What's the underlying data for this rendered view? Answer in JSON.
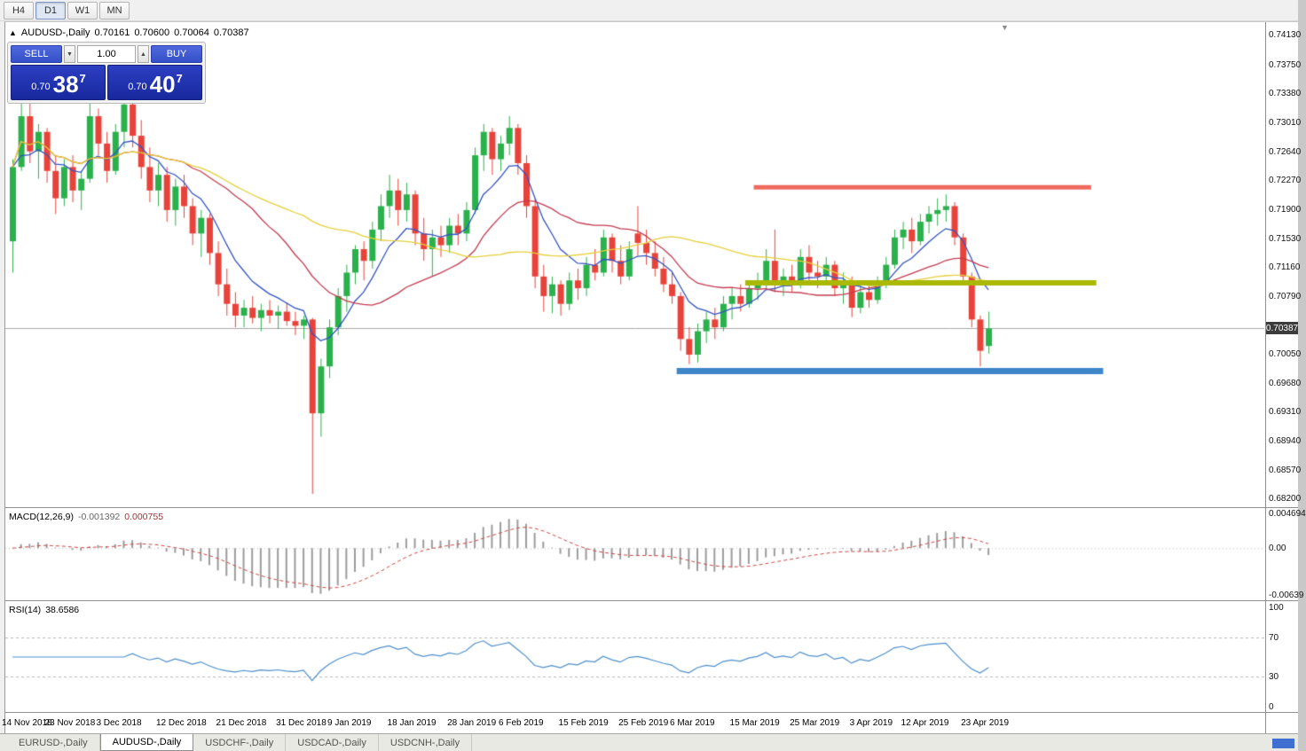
{
  "toolbar": {
    "timeframes": [
      {
        "label": "H4",
        "active": false
      },
      {
        "label": "D1",
        "active": true
      },
      {
        "label": "W1",
        "active": false
      },
      {
        "label": "MN",
        "active": false
      }
    ]
  },
  "icons": {
    "chart_shift_marker": "▼",
    "spinner_up": "▲",
    "spinner_down": "▼"
  },
  "chart_header": {
    "arrow": "▲",
    "symbol": "AUDUSD-,Daily",
    "open": "0.70161",
    "high": "0.70600",
    "low": "0.70064",
    "close": "0.70387"
  },
  "trade_panel": {
    "sell_label": "SELL",
    "buy_label": "BUY",
    "volume": "1.00",
    "sell_price": {
      "prefix": "0.70",
      "big": "38",
      "sup": "7"
    },
    "buy_price": {
      "prefix": "0.70",
      "big": "40",
      "sup": "7"
    }
  },
  "price_axis": {
    "labels": [
      "0.74130",
      "0.73750",
      "0.73380",
      "0.73010",
      "0.72640",
      "0.72270",
      "0.71900",
      "0.71530",
      "0.71160",
      "0.70790",
      "0.70050",
      "0.69680",
      "0.69310",
      "0.68940",
      "0.68570",
      "0.68200"
    ],
    "current_badge": "0.70387"
  },
  "indicator_macd": {
    "label": "MACD(12,26,9)",
    "value_main": "-0.001392",
    "value_signal": "0.000755",
    "axis_labels": [
      "0.004694",
      "0.00",
      "-0.00639"
    ]
  },
  "indicator_rsi": {
    "label": "RSI(14)",
    "value": "38.6586",
    "axis_labels": [
      "100",
      "70",
      "30",
      "0"
    ],
    "levels": [
      70,
      30
    ]
  },
  "date_axis": {
    "labels": [
      {
        "text": "14 Nov 2018",
        "bar": 0
      },
      {
        "text": "23 Nov 2018",
        "bar": 7
      },
      {
        "text": "3 Dec 2018",
        "bar": 13
      },
      {
        "text": "12 Dec 2018",
        "bar": 20
      },
      {
        "text": "21 Dec 2018",
        "bar": 27
      },
      {
        "text": "31 Dec 2018",
        "bar": 34
      },
      {
        "text": "9 Jan 2019",
        "bar": 40
      },
      {
        "text": "18 Jan 2019",
        "bar": 47
      },
      {
        "text": "28 Jan 2019",
        "bar": 54
      },
      {
        "text": "6 Feb 2019",
        "bar": 60
      },
      {
        "text": "15 Feb 2019",
        "bar": 67
      },
      {
        "text": "25 Feb 2019",
        "bar": 74
      },
      {
        "text": "6 Mar 2019",
        "bar": 80
      },
      {
        "text": "15 Mar 2019",
        "bar": 87
      },
      {
        "text": "25 Mar 2019",
        "bar": 94
      },
      {
        "text": "3 Apr 2019",
        "bar": 101
      },
      {
        "text": "12 Apr 2019",
        "bar": 107
      },
      {
        "text": "23 Apr 2019",
        "bar": 114
      }
    ]
  },
  "bottom_tabs": [
    {
      "label": "EURUSD-,Daily",
      "active": false
    },
    {
      "label": "AUDUSD-,Daily",
      "active": true
    },
    {
      "label": "USDCHF-,Daily",
      "active": false
    },
    {
      "label": "USDCAD-,Daily",
      "active": false
    },
    {
      "label": "USDCNH-,Daily",
      "active": false
    }
  ],
  "chart_data": {
    "type": "candlestick",
    "symbol": "AUDUSD",
    "timeframe": "Daily",
    "ylim": [
      0.681,
      0.7428
    ],
    "current_price": 0.70387,
    "colors": {
      "up": "#2bb14c",
      "down": "#e8433a",
      "macd_hist": "#9b9b9b",
      "macd_signal": "#cc4444",
      "rsi": "#4d8fcb",
      "price_line": "#a8a8a8"
    },
    "moving_averages": [
      {
        "name": "fast",
        "method": "ema",
        "period": 8,
        "color": "#3453c4"
      },
      {
        "name": "medium",
        "method": "sma",
        "period": 20,
        "color": "#c43a50"
      },
      {
        "name": "slow",
        "method": "sma",
        "period": 40,
        "color": "#e6cf3a"
      }
    ],
    "hlines": [
      {
        "price": 0.7219,
        "color": "#ef6a5e",
        "width": 5,
        "from_bar": 87,
        "to_bar": 126
      },
      {
        "price": 0.7097,
        "color": "#a9b906",
        "width": 6,
        "from_bar": 86,
        "to_bar": 126.6
      },
      {
        "price": 0.6984,
        "color": "#3d87c9",
        "width": 7,
        "from_bar": 78,
        "to_bar": 127.4
      }
    ],
    "macd": {
      "fast": 12,
      "slow": 26,
      "signal": 9,
      "scale": [
        -0.00639,
        0.004694
      ]
    },
    "rsi": {
      "period": 14,
      "scale": [
        0,
        100
      ]
    },
    "candles": [
      [
        0.715,
        0.7255,
        0.711,
        0.7245
      ],
      [
        0.7245,
        0.7335,
        0.724,
        0.731
      ],
      [
        0.731,
        0.733,
        0.725,
        0.7265
      ],
      [
        0.7265,
        0.73,
        0.723,
        0.729
      ],
      [
        0.729,
        0.7295,
        0.7225,
        0.724
      ],
      [
        0.724,
        0.726,
        0.7185,
        0.7205
      ],
      [
        0.7205,
        0.7255,
        0.7195,
        0.7245
      ],
      [
        0.7245,
        0.726,
        0.72,
        0.7215
      ],
      [
        0.7215,
        0.724,
        0.719,
        0.723
      ],
      [
        0.723,
        0.7328,
        0.7225,
        0.731
      ],
      [
        0.731,
        0.732,
        0.726,
        0.7275
      ],
      [
        0.7275,
        0.729,
        0.7225,
        0.724
      ],
      [
        0.724,
        0.73,
        0.7235,
        0.729
      ],
      [
        0.729,
        0.734,
        0.727,
        0.7325
      ],
      [
        0.7325,
        0.733,
        0.727,
        0.7285
      ],
      [
        0.7285,
        0.7305,
        0.723,
        0.7245
      ],
      [
        0.7245,
        0.727,
        0.72,
        0.7215
      ],
      [
        0.7215,
        0.725,
        0.7195,
        0.7235
      ],
      [
        0.7235,
        0.7245,
        0.7175,
        0.719
      ],
      [
        0.719,
        0.723,
        0.717,
        0.722
      ],
      [
        0.722,
        0.7235,
        0.718,
        0.7195
      ],
      [
        0.7195,
        0.7205,
        0.7145,
        0.716
      ],
      [
        0.716,
        0.719,
        0.713,
        0.718
      ],
      [
        0.718,
        0.7185,
        0.712,
        0.7135
      ],
      [
        0.7135,
        0.715,
        0.708,
        0.7095
      ],
      [
        0.7095,
        0.7115,
        0.7055,
        0.707
      ],
      [
        0.707,
        0.7085,
        0.704,
        0.7055
      ],
      [
        0.7055,
        0.7075,
        0.704,
        0.7065
      ],
      [
        0.7065,
        0.708,
        0.7045,
        0.7052
      ],
      [
        0.7052,
        0.707,
        0.7035,
        0.7062
      ],
      [
        0.7062,
        0.7075,
        0.7045,
        0.7055
      ],
      [
        0.7055,
        0.7068,
        0.7038,
        0.706
      ],
      [
        0.706,
        0.7072,
        0.7042,
        0.7048
      ],
      [
        0.7048,
        0.706,
        0.703,
        0.7042
      ],
      [
        0.7042,
        0.7055,
        0.7025,
        0.705
      ],
      [
        0.705,
        0.7052,
        0.6827,
        0.693
      ],
      [
        0.693,
        0.7,
        0.69,
        0.699
      ],
      [
        0.699,
        0.705,
        0.6975,
        0.704
      ],
      [
        0.704,
        0.709,
        0.703,
        0.708
      ],
      [
        0.708,
        0.712,
        0.706,
        0.711
      ],
      [
        0.711,
        0.7145,
        0.7095,
        0.714
      ],
      [
        0.714,
        0.715,
        0.71,
        0.7125
      ],
      [
        0.7125,
        0.7175,
        0.7115,
        0.7165
      ],
      [
        0.7165,
        0.721,
        0.715,
        0.7195
      ],
      [
        0.7195,
        0.7235,
        0.718,
        0.7215
      ],
      [
        0.7215,
        0.723,
        0.717,
        0.719
      ],
      [
        0.719,
        0.7225,
        0.7175,
        0.721
      ],
      [
        0.721,
        0.7215,
        0.7145,
        0.716
      ],
      [
        0.716,
        0.718,
        0.7125,
        0.714
      ],
      [
        0.714,
        0.7165,
        0.7105,
        0.7155
      ],
      [
        0.7155,
        0.717,
        0.713,
        0.7145
      ],
      [
        0.7145,
        0.718,
        0.7135,
        0.717
      ],
      [
        0.717,
        0.7185,
        0.7145,
        0.716
      ],
      [
        0.716,
        0.72,
        0.715,
        0.719
      ],
      [
        0.719,
        0.727,
        0.7185,
        0.726
      ],
      [
        0.726,
        0.73,
        0.724,
        0.729
      ],
      [
        0.729,
        0.7295,
        0.7235,
        0.7255
      ],
      [
        0.7255,
        0.7285,
        0.724,
        0.7275
      ],
      [
        0.7275,
        0.731,
        0.726,
        0.7295
      ],
      [
        0.7295,
        0.73,
        0.7235,
        0.725
      ],
      [
        0.725,
        0.726,
        0.718,
        0.7195
      ],
      [
        0.7195,
        0.7205,
        0.709,
        0.7105
      ],
      [
        0.7105,
        0.712,
        0.706,
        0.708
      ],
      [
        0.708,
        0.7105,
        0.7058,
        0.7095
      ],
      [
        0.7095,
        0.71,
        0.7055,
        0.707
      ],
      [
        0.707,
        0.711,
        0.7062,
        0.71
      ],
      [
        0.71,
        0.7115,
        0.7075,
        0.709
      ],
      [
        0.709,
        0.713,
        0.708,
        0.712
      ],
      [
        0.712,
        0.714,
        0.71,
        0.711
      ],
      [
        0.711,
        0.7165,
        0.7105,
        0.7155
      ],
      [
        0.7155,
        0.716,
        0.711,
        0.7125
      ],
      [
        0.7125,
        0.7145,
        0.7095,
        0.7105
      ],
      [
        0.7105,
        0.715,
        0.71,
        0.714
      ],
      [
        0.716,
        0.7195,
        0.7132,
        0.7148
      ],
      [
        0.7148,
        0.7165,
        0.712,
        0.7135
      ],
      [
        0.7135,
        0.715,
        0.7105,
        0.7115
      ],
      [
        0.7115,
        0.713,
        0.7085,
        0.7095
      ],
      [
        0.7095,
        0.711,
        0.707,
        0.708
      ],
      [
        0.708,
        0.7085,
        0.701,
        0.7025
      ],
      [
        0.7025,
        0.704,
        0.6993,
        0.7005
      ],
      [
        0.7005,
        0.7045,
        0.6995,
        0.7035
      ],
      [
        0.7035,
        0.706,
        0.702,
        0.705
      ],
      [
        0.705,
        0.7065,
        0.7025,
        0.704
      ],
      [
        0.704,
        0.708,
        0.7035,
        0.707
      ],
      [
        0.707,
        0.709,
        0.705,
        0.708
      ],
      [
        0.708,
        0.7095,
        0.706,
        0.707
      ],
      [
        0.707,
        0.71,
        0.7065,
        0.709
      ],
      [
        0.709,
        0.711,
        0.7075,
        0.71
      ],
      [
        0.71,
        0.714,
        0.709,
        0.7125
      ],
      [
        0.7125,
        0.7165,
        0.7085,
        0.7095
      ],
      [
        0.7095,
        0.7115,
        0.708,
        0.7105
      ],
      [
        0.7105,
        0.712,
        0.7085,
        0.7095
      ],
      [
        0.7095,
        0.714,
        0.709,
        0.713
      ],
      [
        0.713,
        0.7145,
        0.71,
        0.711
      ],
      [
        0.711,
        0.7125,
        0.709,
        0.7105
      ],
      [
        0.7105,
        0.713,
        0.7095,
        0.712
      ],
      [
        0.712,
        0.7125,
        0.708,
        0.709
      ],
      [
        0.709,
        0.711,
        0.707,
        0.71
      ],
      [
        0.71,
        0.7105,
        0.7053,
        0.7065
      ],
      [
        0.7065,
        0.7095,
        0.7058,
        0.7085
      ],
      [
        0.7085,
        0.71,
        0.7065,
        0.7075
      ],
      [
        0.7075,
        0.7105,
        0.707,
        0.7095
      ],
      [
        0.7095,
        0.713,
        0.709,
        0.712
      ],
      [
        0.712,
        0.7165,
        0.7115,
        0.7155
      ],
      [
        0.7155,
        0.7175,
        0.714,
        0.7165
      ],
      [
        0.7165,
        0.718,
        0.7135,
        0.715
      ],
      [
        0.715,
        0.7185,
        0.7145,
        0.7175
      ],
      [
        0.7175,
        0.7195,
        0.716,
        0.7185
      ],
      [
        0.7185,
        0.7205,
        0.717,
        0.719
      ],
      [
        0.719,
        0.721,
        0.7175,
        0.7195
      ],
      [
        0.7195,
        0.72,
        0.7145,
        0.7155
      ],
      [
        0.7155,
        0.716,
        0.7095,
        0.7105
      ],
      [
        0.7105,
        0.711,
        0.704,
        0.705
      ],
      [
        0.705,
        0.7055,
        0.699,
        0.701
      ],
      [
        0.70161,
        0.706,
        0.70064,
        0.70387
      ]
    ]
  }
}
